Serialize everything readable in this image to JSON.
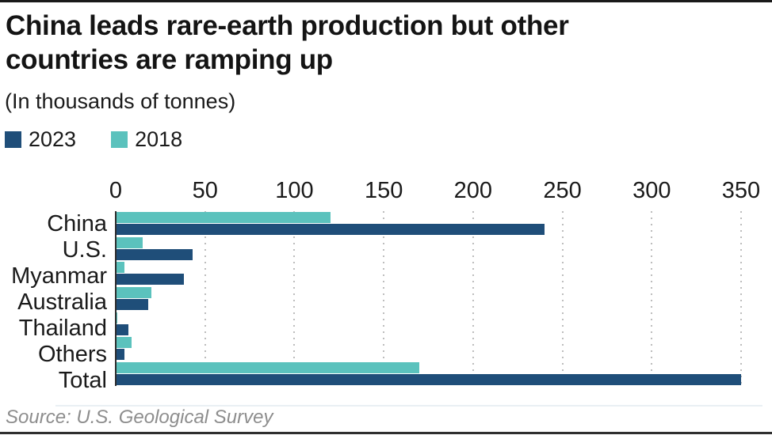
{
  "header": {
    "title_lines": [
      "China leads rare-earth production but other",
      "countries are ramping up"
    ],
    "subtitle": "(In thousands of tonnes)"
  },
  "legend": {
    "items": [
      {
        "label": "2023",
        "color": "#1f4e79"
      },
      {
        "label": "2018",
        "color": "#5bc2bd"
      }
    ]
  },
  "chart_data": {
    "type": "bar",
    "orientation": "horizontal",
    "title": "China leads rare-earth production but other countries are ramping up",
    "subtitle": "(In thousands of tonnes)",
    "units": "thousands of tonnes",
    "categories": [
      "China",
      "U.S.",
      "Myanmar",
      "Australia",
      "Thailand",
      "Others",
      "Total"
    ],
    "series": [
      {
        "name": "2023",
        "color": "#1f4e79",
        "values": [
          240,
          43,
          38,
          18,
          7,
          5,
          350
        ]
      },
      {
        "name": "2018",
        "color": "#5bc2bd",
        "values": [
          120,
          15,
          5,
          20,
          1,
          9,
          170
        ]
      }
    ],
    "x_ticks": [
      0,
      50,
      100,
      150,
      200,
      250,
      300,
      350
    ],
    "xlim": [
      0,
      350
    ],
    "grid": "vertical-dotted",
    "legend_position": "top-left",
    "bar_order_top_to_bottom_in_group": [
      "2018",
      "2023"
    ]
  },
  "footer": {
    "source": "Source: U.S. Geological Survey"
  }
}
